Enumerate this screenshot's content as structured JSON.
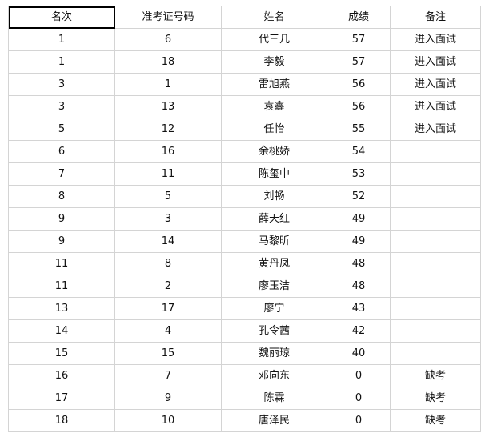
{
  "table": {
    "headers": [
      "名次",
      "准考证号码",
      "姓名",
      "成绩",
      "备注"
    ],
    "rows": [
      [
        "1",
        "6",
        "代三几",
        "57",
        "进入面试"
      ],
      [
        "1",
        "18",
        "李毅",
        "57",
        "进入面试"
      ],
      [
        "3",
        "1",
        "雷旭燕",
        "56",
        "进入面试"
      ],
      [
        "3",
        "13",
        "袁鑫",
        "56",
        "进入面试"
      ],
      [
        "5",
        "12",
        "任怡",
        "55",
        "进入面试"
      ],
      [
        "6",
        "16",
        "余桃娇",
        "54",
        ""
      ],
      [
        "7",
        "11",
        "陈玺中",
        "53",
        ""
      ],
      [
        "8",
        "5",
        "刘畅",
        "52",
        ""
      ],
      [
        "9",
        "3",
        "薛天红",
        "49",
        ""
      ],
      [
        "9",
        "14",
        "马黎昕",
        "49",
        ""
      ],
      [
        "11",
        "8",
        "黄丹凤",
        "48",
        ""
      ],
      [
        "11",
        "2",
        "廖玉洁",
        "48",
        ""
      ],
      [
        "13",
        "17",
        "廖宁",
        "43",
        ""
      ],
      [
        "14",
        "4",
        "孔令茜",
        "42",
        ""
      ],
      [
        "15",
        "15",
        "魏丽琼",
        "40",
        ""
      ],
      [
        "16",
        "7",
        "邓向东",
        "0",
        "缺考"
      ],
      [
        "17",
        "9",
        "陈霖",
        "0",
        "缺考"
      ],
      [
        "18",
        "10",
        "唐泽民",
        "0",
        "缺考"
      ]
    ]
  }
}
